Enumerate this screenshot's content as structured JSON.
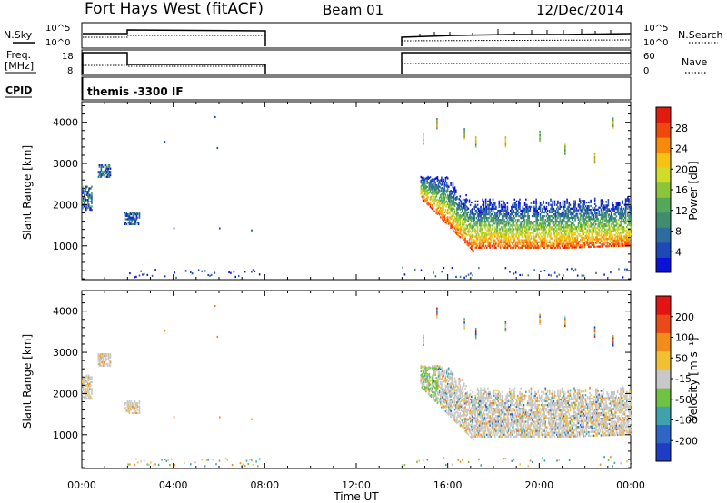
{
  "header": {
    "station": "Fort Hays West (fitACF)",
    "beam": "Beam 01",
    "date": "12/Dec/2014"
  },
  "summary_labels": {
    "nsky": "N.Sky",
    "nsearch": "N.Search",
    "freq_line1": "Freq.",
    "freq_line2": "[MHz]",
    "nave": "Nave",
    "cpid": "CPID",
    "nsky_ticks": [
      "10^5",
      "10^0"
    ],
    "nsearch_ticks": [
      "10^5",
      "10^0"
    ],
    "freq_ticks": [
      "18",
      "8"
    ],
    "nave_ticks": [
      "60",
      "0"
    ],
    "cpid_value": "themis -3300 IF"
  },
  "chart_data": [
    {
      "type": "heatmap",
      "panel": "power",
      "ylabel": "Slant Range [km]",
      "xlabel": "",
      "x_ticks": [
        "00:00",
        "04:00",
        "08:00",
        "12:00",
        "16:00",
        "20:00",
        "00:00"
      ],
      "x_range_hours": [
        0,
        24
      ],
      "y_ticks": [
        "1000",
        "2000",
        "3000",
        "4000"
      ],
      "ylim": [
        180,
        4500
      ],
      "colorbar": {
        "label": "Power [dB]",
        "ticks": [
          "28",
          "24",
          "20",
          "16",
          "12",
          "8",
          "4"
        ],
        "range": [
          0,
          30
        ],
        "colors": [
          "#0a12d8",
          "#1d48b8",
          "#2e6b9e",
          "#3f8c6e",
          "#54a85a",
          "#8cc43a",
          "#cfdc28",
          "#f6c313",
          "#f78a0b",
          "#f0470a",
          "#e11b10"
        ]
      },
      "series": [
        {
          "time_range": [
            0.0,
            0.4
          ],
          "range_km": [
            1900,
            2500
          ]
        },
        {
          "time_range": [
            0.7,
            1.25
          ],
          "range_km": [
            2700,
            3000
          ]
        },
        {
          "time_range": [
            1.85,
            2.5
          ],
          "range_km": [
            1550,
            1850
          ]
        },
        {
          "time_range": [
            14.8,
            24.0
          ],
          "range_km": [
            900,
            2800
          ]
        }
      ]
    },
    {
      "type": "heatmap",
      "panel": "velocity",
      "ylabel": "Slant Range [km]",
      "xlabel": "Time UT",
      "x_ticks": [
        "00:00",
        "04:00",
        "08:00",
        "12:00",
        "16:00",
        "20:00",
        "00:00"
      ],
      "x_range_hours": [
        0,
        24
      ],
      "y_ticks": [
        "1000",
        "2000",
        "3000",
        "4000"
      ],
      "ylim": [
        180,
        4500
      ],
      "colorbar": {
        "label": "Velocity [m s⁻¹]",
        "ticks": [
          "200",
          "100",
          "50",
          "-15",
          "-50",
          "-100",
          "-200"
        ],
        "colors": [
          "#1f3cc4",
          "#2d66c6",
          "#3fa3ae",
          "#6fc243",
          "#c8c8c8",
          "#f0c233",
          "#f28c1a",
          "#ea4a17",
          "#e51414"
        ]
      },
      "series": [
        {
          "time_range": [
            0.0,
            0.4
          ],
          "range_km": [
            1900,
            2500
          ]
        },
        {
          "time_range": [
            0.7,
            1.25
          ],
          "range_km": [
            2700,
            3000
          ]
        },
        {
          "time_range": [
            1.85,
            2.5
          ],
          "range_km": [
            1550,
            1850
          ]
        },
        {
          "time_range": [
            14.8,
            24.0
          ],
          "range_km": [
            900,
            2800
          ]
        }
      ]
    }
  ]
}
